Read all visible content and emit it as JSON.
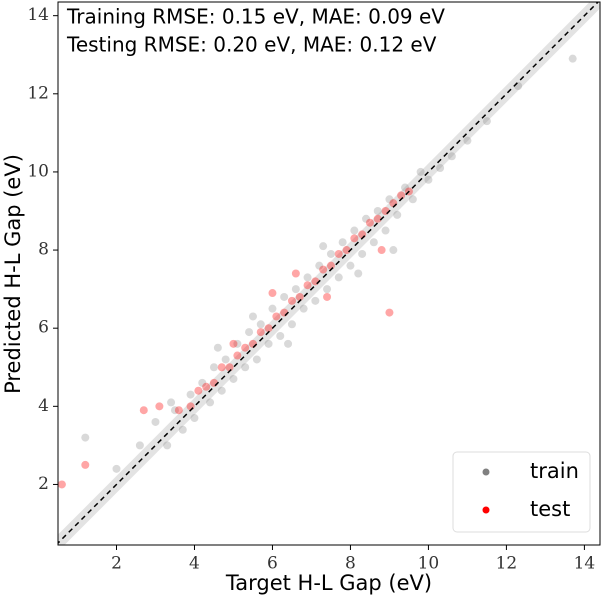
{
  "chart_data": {
    "type": "scatter",
    "xlabel": "Target H-L Gap (eV)",
    "ylabel": "Predicted H-L Gap (eV)",
    "annotations": [
      "Training RMSE: 0.15 eV, MAE: 0.09 eV",
      "Testing RMSE: 0.20 eV, MAE: 0.12 eV"
    ],
    "xlim": [
      0.5,
      14.4
    ],
    "ylim": [
      0.45,
      14.35
    ],
    "xticks": [
      2,
      4,
      6,
      8,
      10,
      12,
      14
    ],
    "yticks": [
      2,
      4,
      6,
      8,
      10,
      12,
      14
    ],
    "legend": "lower right",
    "series": [
      {
        "name": "train",
        "color": "#808080",
        "x": [
          1.2,
          2.0,
          2.6,
          3.0,
          3.3,
          3.5,
          3.7,
          3.9,
          4.0,
          4.2,
          4.4,
          4.5,
          4.7,
          4.8,
          5.0,
          5.1,
          5.3,
          5.4,
          5.6,
          5.7,
          5.9,
          6.0,
          6.2,
          6.3,
          6.5,
          6.6,
          6.8,
          6.9,
          7.1,
          7.2,
          7.4,
          7.5,
          7.7,
          7.8,
          8.0,
          8.1,
          8.3,
          8.4,
          8.6,
          8.7,
          8.9,
          9.0,
          9.2,
          9.4,
          9.6,
          9.8,
          10.0,
          10.3,
          10.6,
          11.0,
          11.5,
          12.3,
          13.7,
          5.5,
          6.4,
          7.3,
          8.2,
          4.6,
          9.1,
          3.4
        ],
        "values": [
          3.2,
          2.4,
          3.0,
          3.6,
          3.0,
          3.9,
          3.4,
          4.3,
          3.7,
          4.6,
          4.1,
          5.0,
          4.4,
          5.2,
          4.7,
          5.6,
          5.0,
          5.9,
          5.2,
          6.1,
          5.6,
          6.5,
          5.8,
          6.8,
          6.1,
          7.0,
          6.5,
          7.3,
          6.7,
          7.6,
          7.0,
          7.9,
          7.3,
          8.2,
          7.6,
          8.5,
          7.9,
          8.8,
          8.2,
          9.0,
          8.5,
          9.3,
          8.9,
          9.6,
          9.3,
          10.0,
          9.8,
          10.1,
          10.4,
          10.8,
          11.3,
          12.2,
          12.9,
          6.3,
          5.6,
          8.1,
          7.4,
          5.5,
          8.0,
          4.1
        ]
      },
      {
        "name": "test",
        "color": "#ff0000",
        "x": [
          0.6,
          1.2,
          2.7,
          3.6,
          3.9,
          4.1,
          4.3,
          4.5,
          4.7,
          4.9,
          5.1,
          5.3,
          5.5,
          5.7,
          5.9,
          6.1,
          6.3,
          6.5,
          6.7,
          6.9,
          7.1,
          7.3,
          7.5,
          7.7,
          7.9,
          8.1,
          8.3,
          8.5,
          8.7,
          8.9,
          9.1,
          9.3,
          9.5,
          3.1,
          5.0,
          6.6,
          7.4,
          8.8,
          9.0,
          6.0
        ],
        "values": [
          2.0,
          2.5,
          3.9,
          3.9,
          4.0,
          4.4,
          4.5,
          4.6,
          5.0,
          5.0,
          5.3,
          5.5,
          5.6,
          5.9,
          6.0,
          6.3,
          6.4,
          6.7,
          6.8,
          7.1,
          7.2,
          7.5,
          7.6,
          7.9,
          8.0,
          8.3,
          8.4,
          8.7,
          8.8,
          9.0,
          9.2,
          9.4,
          9.5,
          4.0,
          5.6,
          7.4,
          6.8,
          8.0,
          6.4,
          6.9
        ]
      }
    ]
  }
}
